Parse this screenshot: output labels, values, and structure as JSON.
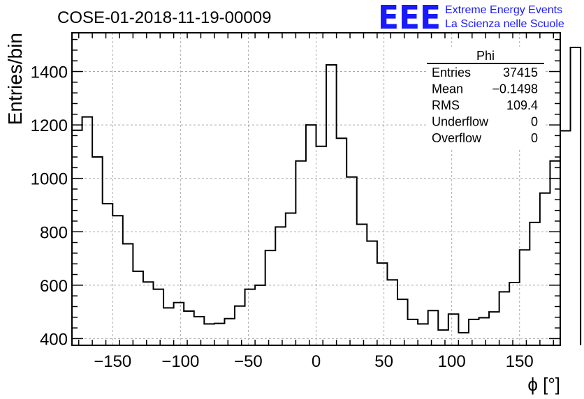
{
  "header": {
    "run_title": "COSE-01-2018-11-19-00009",
    "logo_text": "EEE",
    "logo_line1": "Extreme Energy Events",
    "logo_line2": "La Scienza nelle Scuole"
  },
  "colors": {
    "accent": "#1a1aff",
    "histogram": "#000000",
    "grid": "#aaaaaa"
  },
  "stats_box": {
    "title": "Phi",
    "rows": [
      {
        "label": "Entries",
        "value": "37415"
      },
      {
        "label": "Mean",
        "value": "−0.1498"
      },
      {
        "label": "RMS",
        "value": "109.4"
      },
      {
        "label": "Underflow",
        "value": "0"
      },
      {
        "label": "Overflow",
        "value": "0"
      }
    ]
  },
  "chart_data": {
    "type": "histogram",
    "title": "COSE-01-2018-11-19-00009",
    "xlabel": "ϕ [°]",
    "ylabel": "Entries/bin",
    "xlim": [
      -180,
      180
    ],
    "ylim": [
      375,
      1545
    ],
    "grid": true,
    "legend": "top-right",
    "x_ticks": [
      -150,
      -100,
      -50,
      0,
      50,
      100,
      150
    ],
    "x_tick_labels": [
      "−150",
      "−100",
      "−50",
      "0",
      "50",
      "100",
      "150"
    ],
    "y_ticks": [
      400,
      600,
      800,
      1000,
      1200,
      1400
    ],
    "y_tick_labels": [
      "400",
      "600",
      "800",
      "1000",
      "1200",
      "1400"
    ],
    "bin_edges_start": -180,
    "bin_width": 7.5,
    "values": [
      1180,
      1230,
      1080,
      905,
      860,
      755,
      652,
      612,
      585,
      515,
      535,
      503,
      482,
      455,
      457,
      475,
      522,
      585,
      600,
      730,
      818,
      870,
      1065,
      1200,
      1120,
      1425,
      1150,
      1005,
      828,
      765,
      683,
      620,
      547,
      472,
      455,
      505,
      432,
      492,
      422,
      472,
      478,
      500,
      575,
      610,
      732,
      835,
      945,
      1065,
      1178,
      1490
    ]
  }
}
